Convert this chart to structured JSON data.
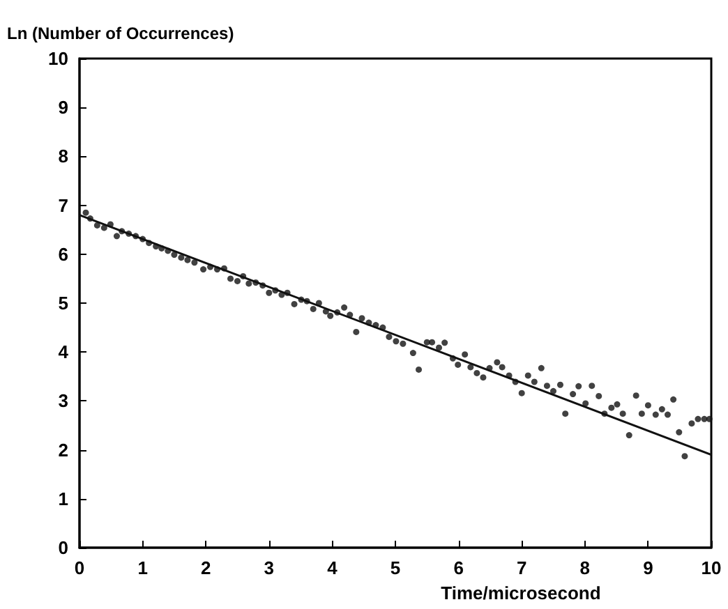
{
  "chart_data": {
    "type": "scatter",
    "xlabel": "Time/microsecond",
    "ylabel": "Ln (Number of Occurrences)",
    "xlim": [
      0,
      10
    ],
    "xticks": [
      0,
      1,
      2,
      3,
      4,
      5,
      6,
      7,
      8,
      9,
      10
    ],
    "ylim": [
      0,
      10
    ],
    "yticks": [
      0,
      1,
      2,
      3,
      4,
      5,
      6,
      7,
      8,
      9,
      10
    ],
    "grid": false,
    "marker": "circle",
    "series": [
      {
        "color": "#111111",
        "x": [
          0.1,
          0.17,
          0.28,
          0.39,
          0.49,
          0.59,
          0.67,
          0.78,
          0.89,
          1.0,
          1.1,
          1.21,
          1.3,
          1.4,
          1.5,
          1.61,
          1.71,
          1.82,
          1.96,
          2.07,
          2.18,
          2.29,
          2.39,
          2.5,
          2.59,
          2.68,
          2.79,
          2.9,
          3.0,
          3.1,
          3.2,
          3.29,
          3.4,
          3.51,
          3.6,
          3.7,
          3.79,
          3.9,
          3.97,
          4.08,
          4.19,
          4.28,
          4.38,
          4.47,
          4.58,
          4.69,
          4.8,
          4.9,
          5.01,
          5.12,
          5.28,
          5.37,
          5.5,
          5.58,
          5.69,
          5.78,
          5.91,
          5.99,
          6.1,
          6.19,
          6.29,
          6.39,
          6.49,
          6.61,
          6.69,
          6.8,
          6.9,
          7.0,
          7.1,
          7.2,
          7.31,
          7.4,
          7.5,
          7.61,
          7.69,
          7.81,
          7.9,
          8.01,
          8.11,
          8.22,
          8.31,
          8.42,
          8.51,
          8.6,
          8.7,
          8.81,
          8.9,
          9.0,
          9.12,
          9.22,
          9.31,
          9.4,
          9.49,
          9.58,
          9.69,
          9.79,
          9.89,
          9.97
        ],
        "values": [
          6.85,
          6.73,
          6.59,
          6.54,
          6.61,
          6.37,
          6.47,
          6.42,
          6.37,
          6.31,
          6.23,
          6.16,
          6.12,
          6.07,
          5.99,
          5.93,
          5.88,
          5.83,
          5.69,
          5.74,
          5.69,
          5.71,
          5.5,
          5.45,
          5.55,
          5.4,
          5.42,
          5.36,
          5.21,
          5.26,
          5.17,
          5.21,
          4.98,
          5.07,
          5.04,
          4.88,
          5.0,
          4.83,
          4.74,
          4.81,
          4.91,
          4.76,
          4.41,
          4.69,
          4.6,
          4.55,
          4.5,
          4.31,
          4.22,
          4.17,
          3.98,
          3.64,
          4.2,
          4.2,
          4.09,
          4.19,
          3.87,
          3.74,
          3.95,
          3.69,
          3.57,
          3.48,
          3.67,
          3.79,
          3.69,
          3.52,
          3.39,
          3.16,
          3.52,
          3.39,
          3.67,
          3.31,
          3.2,
          3.33,
          2.74,
          3.14,
          3.3,
          2.95,
          3.31,
          3.1,
          2.74,
          2.86,
          2.93,
          2.74,
          2.3,
          3.11,
          2.74,
          2.91,
          2.72,
          2.83,
          2.72,
          3.03,
          2.36,
          1.87,
          2.54,
          2.63,
          2.63,
          2.63
        ]
      },
      {
        "type": "line",
        "color": "#111111",
        "marker": "none",
        "x": [
          0,
          10
        ],
        "values": [
          6.8,
          1.9
        ]
      }
    ]
  }
}
